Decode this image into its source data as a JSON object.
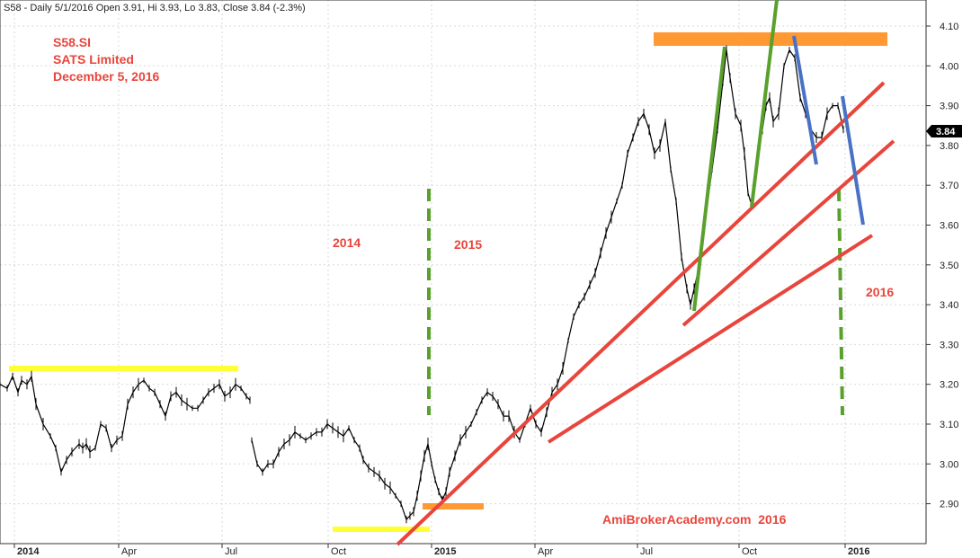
{
  "chart_data": {
    "type": "line",
    "header": "S58 - Daily 5/1/2016 Open 3.91, Hi 3.93, Lo 3.83, Close 3.84 (-2.3%)",
    "annotations": {
      "ticker": "S58.SI",
      "company": "SATS Limited",
      "date": "December 5, 2016",
      "year_2014": "2014",
      "year_2015": "2015",
      "year_2016": "2016",
      "watermark": "AmiBrokerAcademy.com  2016"
    },
    "last_price_label": "3.84",
    "y_ticks": [
      "4.10",
      "4.00",
      "3.90",
      "3.80",
      "3.70",
      "3.60",
      "3.50",
      "3.40",
      "3.30",
      "3.20",
      "3.10",
      "3.00",
      "2.90"
    ],
    "x_ticks": [
      {
        "label": "2014",
        "bold": true
      },
      {
        "label": "Apr",
        "bold": false
      },
      {
        "label": "Jul",
        "bold": false
      },
      {
        "label": "Oct",
        "bold": false
      },
      {
        "label": "2015",
        "bold": true
      },
      {
        "label": "Apr",
        "bold": false
      },
      {
        "label": "Jul",
        "bold": false
      },
      {
        "label": "Oct",
        "bold": false
      },
      {
        "label": "2016",
        "bold": true
      }
    ],
    "ylim": [
      2.82,
      4.15
    ],
    "grid": true,
    "colors": {
      "price": "#000000",
      "trendline": "#e8453c",
      "support": "#ffff33",
      "resistance": "#ff9933",
      "up_swing": "#5aa02c",
      "down_swing": "#4a72c4",
      "year_divider": "#5aa02c"
    },
    "price_series": {
      "name": "S58",
      "x": [
        0,
        8,
        14,
        20,
        24,
        30,
        35,
        40,
        48,
        56,
        62,
        68,
        74,
        80,
        88,
        92,
        96,
        100,
        106,
        112,
        118,
        124,
        130,
        136,
        142,
        148,
        154,
        160,
        166,
        172,
        178,
        184,
        190,
        196,
        202,
        208,
        214,
        220,
        226,
        232,
        238,
        244,
        250,
        256,
        262,
        268,
        274,
        278
      ],
      "y": [
        3.2,
        3.19,
        3.22,
        3.18,
        3.21,
        3.2,
        3.22,
        3.15,
        3.1,
        3.07,
        3.04,
        2.98,
        3.01,
        3.03,
        3.05,
        3.04,
        3.05,
        3.03,
        3.04,
        3.1,
        3.09,
        3.04,
        3.06,
        3.07,
        3.15,
        3.18,
        3.2,
        3.21,
        3.19,
        3.18,
        3.15,
        3.12,
        3.17,
        3.18,
        3.16,
        3.15,
        3.14,
        3.14,
        3.16,
        3.18,
        3.19,
        3.2,
        3.17,
        3.18,
        3.2,
        3.19,
        3.17,
        3.16
      ],
      "segment_2": {
        "x": [
          280,
          286,
          292,
          298,
          304,
          310,
          316,
          322,
          328,
          334,
          340,
          346,
          352,
          358,
          364,
          370,
          376,
          382,
          388,
          394,
          400,
          404,
          410,
          416,
          422,
          428,
          434,
          440,
          446,
          452,
          456,
          460,
          464,
          468,
          472,
          476,
          480,
          484,
          488,
          492,
          496,
          500,
          506,
          512,
          518,
          524,
          530,
          536,
          542,
          548,
          554,
          560,
          566,
          572,
          578,
          584,
          590,
          596,
          602,
          608,
          614,
          620,
          626,
          632,
          638,
          644,
          650,
          656,
          662,
          668,
          674,
          680,
          686,
          692,
          698,
          704,
          710,
          716,
          722,
          728,
          734,
          740,
          746,
          752,
          758,
          764,
          768,
          772,
          776,
          780,
          786,
          792,
          798,
          804,
          808,
          812,
          818,
          824,
          828,
          832,
          836,
          840,
          844,
          848,
          852,
          856,
          860,
          866,
          872,
          878,
          884,
          890,
          896,
          902,
          908,
          914,
          920,
          926,
          932,
          938
        ],
        "y": [
          3.06,
          3.0,
          2.98,
          3.0,
          3.0,
          3.03,
          3.05,
          3.06,
          3.08,
          3.07,
          3.06,
          3.07,
          3.08,
          3.08,
          3.1,
          3.09,
          3.08,
          3.07,
          3.09,
          3.06,
          3.04,
          3.01,
          2.99,
          2.98,
          2.97,
          2.95,
          2.94,
          2.92,
          2.9,
          2.86,
          2.87,
          2.88,
          2.92,
          2.97,
          3.02,
          3.05,
          3.0,
          2.96,
          2.93,
          2.91,
          2.93,
          2.98,
          3.02,
          3.06,
          3.08,
          3.1,
          3.13,
          3.16,
          3.18,
          3.17,
          3.15,
          3.12,
          3.12,
          3.08,
          3.06,
          3.1,
          3.14,
          3.1,
          3.08,
          3.13,
          3.18,
          3.2,
          3.24,
          3.31,
          3.37,
          3.4,
          3.42,
          3.45,
          3.48,
          3.53,
          3.58,
          3.62,
          3.66,
          3.7,
          3.78,
          3.82,
          3.86,
          3.88,
          3.84,
          3.78,
          3.8,
          3.86,
          3.74,
          3.66,
          3.52,
          3.44,
          3.4,
          3.44,
          3.48,
          3.55,
          3.64,
          3.74,
          3.84,
          3.96,
          4.04,
          3.97,
          3.88,
          3.85,
          3.78,
          3.68,
          3.65,
          3.72,
          3.8,
          3.84,
          3.9,
          3.92,
          3.86,
          3.88,
          4.0,
          4.04,
          4.02,
          3.92,
          3.88,
          3.84,
          3.82,
          3.82,
          3.88,
          3.9,
          3.9,
          3.84
        ]
      }
    }
  }
}
